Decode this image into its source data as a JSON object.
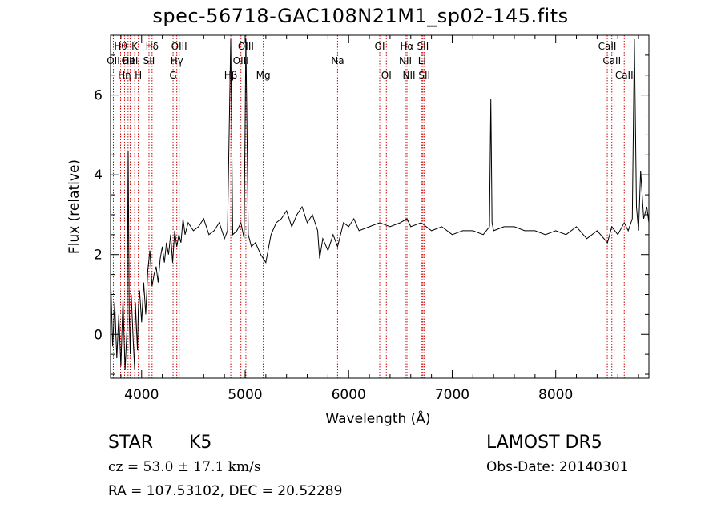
{
  "title": "spec-56718-GAC108N21M1_sp02-145.fits",
  "info": {
    "class": "STAR",
    "subclass": "K5",
    "survey": "LAMOST DR5",
    "cz": "cz = 53.0 ± 17.1 km/s",
    "obs_date": "Obs-Date: 20140301",
    "radec": "RA = 107.53102, DEC =  20.52289"
  },
  "chart_data": {
    "type": "line",
    "xlabel": "Wavelength (Å)",
    "ylabel": "Flux (relative)",
    "xlim": [
      3700,
      8900
    ],
    "ylim": [
      -1.1,
      7.5
    ],
    "xticks": [
      4000,
      5000,
      6000,
      7000,
      8000
    ],
    "yticks": [
      0,
      2,
      4,
      6
    ],
    "line_color": "#000000",
    "marker_color": "#cc0000",
    "spectrum": {
      "x": [
        3700,
        3720,
        3740,
        3760,
        3780,
        3800,
        3820,
        3840,
        3860,
        3870,
        3880,
        3890,
        3900,
        3920,
        3933,
        3940,
        3960,
        3968,
        3980,
        4000,
        4020,
        4040,
        4060,
        4080,
        4101,
        4120,
        4140,
        4160,
        4180,
        4200,
        4220,
        4240,
        4260,
        4280,
        4300,
        4320,
        4340,
        4360,
        4380,
        4400,
        4420,
        4450,
        4500,
        4550,
        4600,
        4650,
        4700,
        4750,
        4800,
        4830,
        4861,
        4880,
        4920,
        4959,
        4990,
        5007,
        5030,
        5060,
        5100,
        5150,
        5200,
        5250,
        5300,
        5350,
        5400,
        5450,
        5500,
        5550,
        5600,
        5650,
        5700,
        5720,
        5750,
        5800,
        5850,
        5893,
        5950,
        6000,
        6050,
        6100,
        6200,
        6300,
        6400,
        6500,
        6563,
        6600,
        6700,
        6800,
        6900,
        7000,
        7100,
        7200,
        7300,
        7360,
        7373,
        7385,
        7400,
        7500,
        7600,
        7700,
        7800,
        7900,
        8000,
        8100,
        8200,
        8300,
        8400,
        8500,
        8542,
        8600,
        8662,
        8700,
        8740,
        8760,
        8780,
        8800,
        8820,
        8850,
        8880,
        8900
      ],
      "y": [
        1.5,
        -0.3,
        0.8,
        -0.6,
        0.5,
        -0.8,
        0.9,
        -0.9,
        0.2,
        4.6,
        0.5,
        -0.5,
        1.0,
        -0.2,
        -0.9,
        0.8,
        -0.4,
        0.6,
        1.1,
        0.3,
        1.3,
        0.5,
        1.6,
        2.1,
        1.2,
        1.5,
        1.7,
        1.3,
        1.9,
        2.2,
        1.8,
        2.3,
        2.0,
        2.5,
        1.8,
        2.6,
        2.2,
        2.5,
        2.3,
        2.9,
        2.5,
        2.8,
        2.6,
        2.7,
        2.9,
        2.5,
        2.6,
        2.8,
        2.4,
        2.6,
        7.4,
        2.5,
        2.6,
        2.8,
        2.4,
        7.4,
        2.5,
        2.2,
        2.3,
        2.0,
        1.8,
        2.5,
        2.8,
        2.9,
        3.1,
        2.7,
        3.0,
        3.2,
        2.8,
        3.0,
        2.6,
        1.9,
        2.4,
        2.1,
        2.5,
        2.2,
        2.8,
        2.7,
        2.9,
        2.6,
        2.7,
        2.8,
        2.7,
        2.8,
        2.9,
        2.7,
        2.8,
        2.6,
        2.7,
        2.5,
        2.6,
        2.6,
        2.5,
        2.7,
        5.9,
        2.8,
        2.6,
        2.7,
        2.7,
        2.6,
        2.6,
        2.5,
        2.6,
        2.5,
        2.7,
        2.4,
        2.6,
        2.3,
        2.7,
        2.5,
        2.8,
        2.6,
        2.9,
        7.4,
        3.2,
        2.6,
        4.1,
        2.9,
        3.2,
        2.8
      ]
    },
    "lines": [
      {
        "wl": 3727,
        "label": "OII",
        "row": 2
      },
      {
        "wl": 3797,
        "label": "Hθ",
        "row": 1
      },
      {
        "wl": 3835,
        "label": "Hη",
        "row": 3
      },
      {
        "wl": 3869,
        "label": "OII",
        "row": 2
      },
      {
        "wl": 3889,
        "label": "HeI",
        "row": 2
      },
      {
        "wl": 3933,
        "label": "K",
        "row": 1
      },
      {
        "wl": 3968,
        "label": "H",
        "row": 3
      },
      {
        "wl": 4071,
        "label": "SII",
        "row": 2
      },
      {
        "wl": 4101,
        "label": "Hδ",
        "row": 1
      },
      {
        "wl": 4304,
        "label": "G",
        "row": 3
      },
      {
        "wl": 4340,
        "label": "Hγ",
        "row": 2
      },
      {
        "wl": 4363,
        "label": "OIII",
        "row": 1
      },
      {
        "wl": 4861,
        "label": "Hβ",
        "row": 3
      },
      {
        "wl": 4959,
        "label": "OIII",
        "row": 2
      },
      {
        "wl": 5007,
        "label": "OIII",
        "row": 1
      },
      {
        "wl": 5175,
        "label": "Mg",
        "row": 3
      },
      {
        "wl": 5893,
        "label": "Na",
        "row": 2
      },
      {
        "wl": 6300,
        "label": "OI",
        "row": 1
      },
      {
        "wl": 6364,
        "label": "OI",
        "row": 3
      },
      {
        "wl": 6548,
        "label": "NII",
        "row": 2
      },
      {
        "wl": 6563,
        "label": "Hα",
        "row": 1
      },
      {
        "wl": 6583,
        "label": "NII",
        "row": 3
      },
      {
        "wl": 6708,
        "label": "Li",
        "row": 2
      },
      {
        "wl": 6717,
        "label": "SII",
        "row": 1
      },
      {
        "wl": 6731,
        "label": "SII",
        "row": 3
      },
      {
        "wl": 8498,
        "label": "CaII",
        "row": 1
      },
      {
        "wl": 8542,
        "label": "CaII",
        "row": 2
      },
      {
        "wl": 8662,
        "label": "CaII",
        "row": 3
      }
    ]
  }
}
